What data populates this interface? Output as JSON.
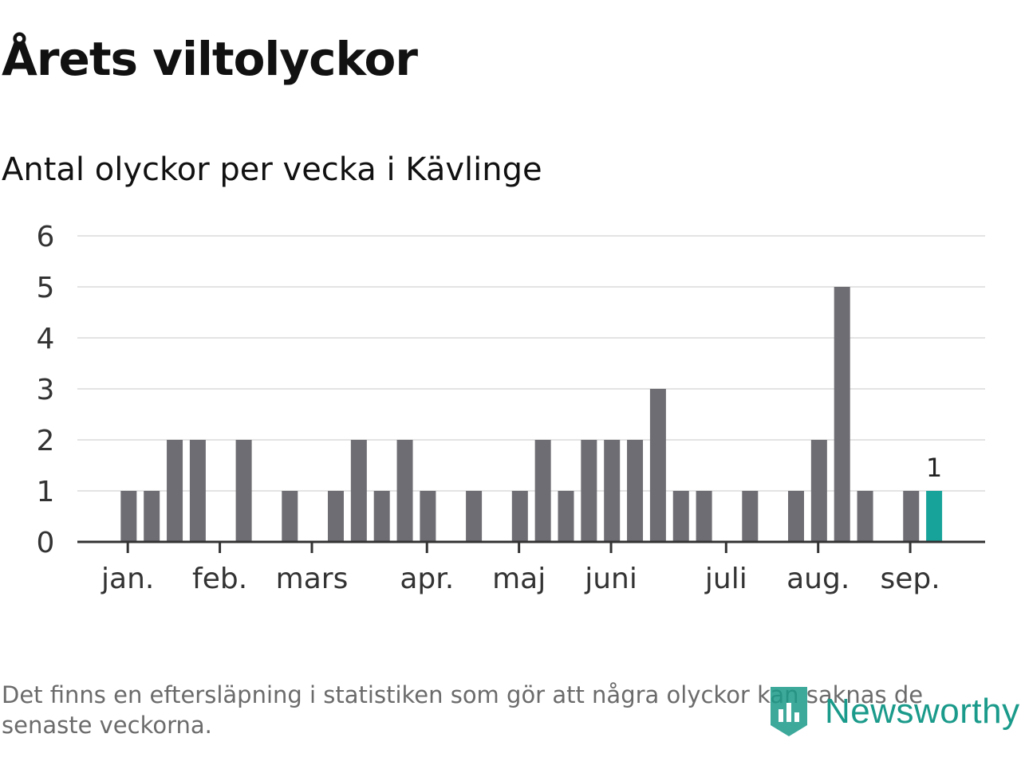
{
  "header": {
    "title": "Årets viltolyckor",
    "subtitle": "Antal olyckor per vecka i Kävlinge"
  },
  "footer": {
    "note": "Det finns en eftersläpning i statistiken som gör att några olyckor kan saknas de senaste veckorna.",
    "brand": "Newsworthy"
  },
  "colors": {
    "bar": "#6e6d73",
    "highlight": "#18a39a",
    "grid": "#e3e3e3",
    "axis": "#333333",
    "brand": "#1a9a8a"
  },
  "chart_data": {
    "type": "bar",
    "title": "",
    "xlabel": "",
    "ylabel": "",
    "ylim": [
      0,
      6
    ],
    "yticks": [
      0,
      1,
      2,
      3,
      4,
      5,
      6
    ],
    "grid": true,
    "x": [
      1,
      2,
      3,
      4,
      5,
      6,
      7,
      8,
      9,
      10,
      11,
      12,
      13,
      14,
      15,
      16,
      17,
      18,
      19,
      20,
      21,
      22,
      23,
      24,
      25,
      26,
      27,
      28,
      29,
      30,
      31,
      32,
      33,
      34,
      35,
      36,
      37,
      38
    ],
    "values": [
      0,
      1,
      1,
      2,
      2,
      0,
      2,
      0,
      1,
      0,
      1,
      2,
      1,
      2,
      1,
      0,
      1,
      0,
      1,
      2,
      1,
      2,
      2,
      2,
      3,
      1,
      1,
      0,
      1,
      0,
      1,
      2,
      5,
      1,
      0,
      1,
      1,
      0
    ],
    "highlight_index": 36,
    "highlight_label": "1",
    "month_ticks": [
      {
        "label": "jan.",
        "week": 1.96
      },
      {
        "label": "feb.",
        "week": 5.96
      },
      {
        "label": "mars",
        "week": 9.96
      },
      {
        "label": "apr.",
        "week": 14.96
      },
      {
        "label": "maj",
        "week": 18.96
      },
      {
        "label": "juni",
        "week": 22.96
      },
      {
        "label": "juli",
        "week": 27.96
      },
      {
        "label": "aug.",
        "week": 31.96
      },
      {
        "label": "sep.",
        "week": 35.96
      }
    ]
  }
}
